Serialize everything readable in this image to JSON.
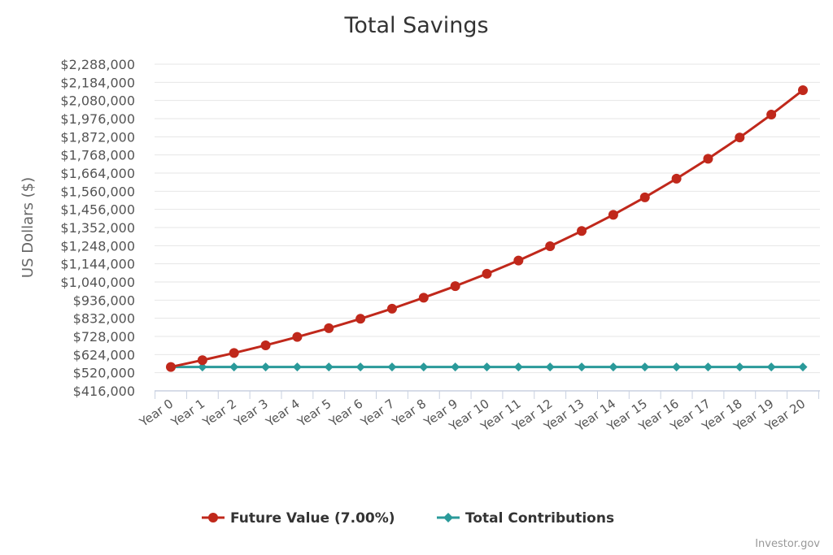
{
  "chart_data": {
    "type": "line",
    "title": "Total Savings",
    "ylabel": "US Dollars ($)",
    "xlabel": "",
    "categories": [
      "Year 0",
      "Year 1",
      "Year 2",
      "Year 3",
      "Year 4",
      "Year 5",
      "Year 6",
      "Year 7",
      "Year 8",
      "Year 9",
      "Year 10",
      "Year 11",
      "Year 12",
      "Year 13",
      "Year 14",
      "Year 15",
      "Year 16",
      "Year 17",
      "Year 18",
      "Year 19",
      "Year 20"
    ],
    "yticks": [
      "$416,000",
      "$520,000",
      "$624,000",
      "$728,000",
      "$832,000",
      "$936,000",
      "$1,040,000",
      "$1,144,000",
      "$1,248,000",
      "$1,352,000",
      "$1,456,000",
      "$1,560,000",
      "$1,664,000",
      "$1,768,000",
      "$1,872,000",
      "$1,976,000",
      "$2,080,000",
      "$2,184,000",
      "$2,288,000"
    ],
    "ylim": [
      416000,
      2288000
    ],
    "grid": true,
    "legend_position": "bottom-center",
    "series": [
      {
        "name": "Future Value (7.00%)",
        "color": "#c0281b",
        "marker": "circle",
        "values": [
          553000,
          592000,
          633000,
          677000,
          725000,
          775000,
          829000,
          887000,
          950000,
          1016000,
          1087000,
          1163000,
          1245000,
          1332000,
          1425000,
          1525000,
          1632000,
          1746000,
          1868000,
          1999000,
          2139000
        ]
      },
      {
        "name": "Total Contributions",
        "color": "#2a9a9a",
        "marker": "diamond",
        "values": [
          553000,
          553000,
          553000,
          553000,
          553000,
          553000,
          553000,
          553000,
          553000,
          553000,
          553000,
          553000,
          553000,
          553000,
          553000,
          553000,
          553000,
          553000,
          553000,
          553000,
          553000
        ]
      }
    ]
  },
  "credit": "Investor.gov"
}
